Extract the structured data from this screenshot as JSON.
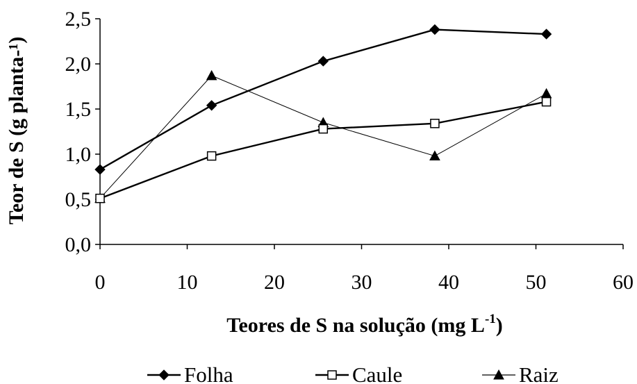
{
  "chart_data": {
    "type": "line",
    "xlabel": "Teores de S na solução (mg L",
    "xlabel_sup": "-1",
    "xlabel_end": ")",
    "ylabel": "Teor de S (g planta-¹)",
    "xlim": [
      0,
      60
    ],
    "ylim": [
      0,
      2.5
    ],
    "x_ticks": [
      0,
      10,
      20,
      30,
      40,
      50,
      60
    ],
    "y_ticks": [
      0.0,
      0.5,
      1.0,
      1.5,
      2.0,
      2.5
    ],
    "x_tick_labels": [
      "0",
      "10",
      "20",
      "30",
      "40",
      "50",
      "60"
    ],
    "y_tick_labels": [
      "0,0",
      "0,5",
      "1,0",
      "1,5",
      "2,0",
      "2,5"
    ],
    "grid": false,
    "legend_position": "bottom",
    "series": [
      {
        "name": "Folha",
        "marker": "diamond",
        "line_width": "thick",
        "x": [
          0,
          12.8,
          25.6,
          38.4,
          51.2
        ],
        "y": [
          0.83,
          1.54,
          2.03,
          2.38,
          2.33
        ]
      },
      {
        "name": "Caule",
        "marker": "open-square",
        "line_width": "thick",
        "x": [
          0,
          12.8,
          25.6,
          38.4,
          51.2
        ],
        "y": [
          0.51,
          0.98,
          1.28,
          1.34,
          1.58
        ]
      },
      {
        "name": "Raiz",
        "marker": "triangle",
        "line_width": "thin",
        "x": [
          0,
          12.8,
          25.6,
          38.4,
          51.2
        ],
        "y": [
          0.51,
          1.87,
          1.35,
          0.98,
          1.67
        ]
      }
    ],
    "colors": {
      "line": "#000000",
      "background": "#ffffff"
    }
  }
}
